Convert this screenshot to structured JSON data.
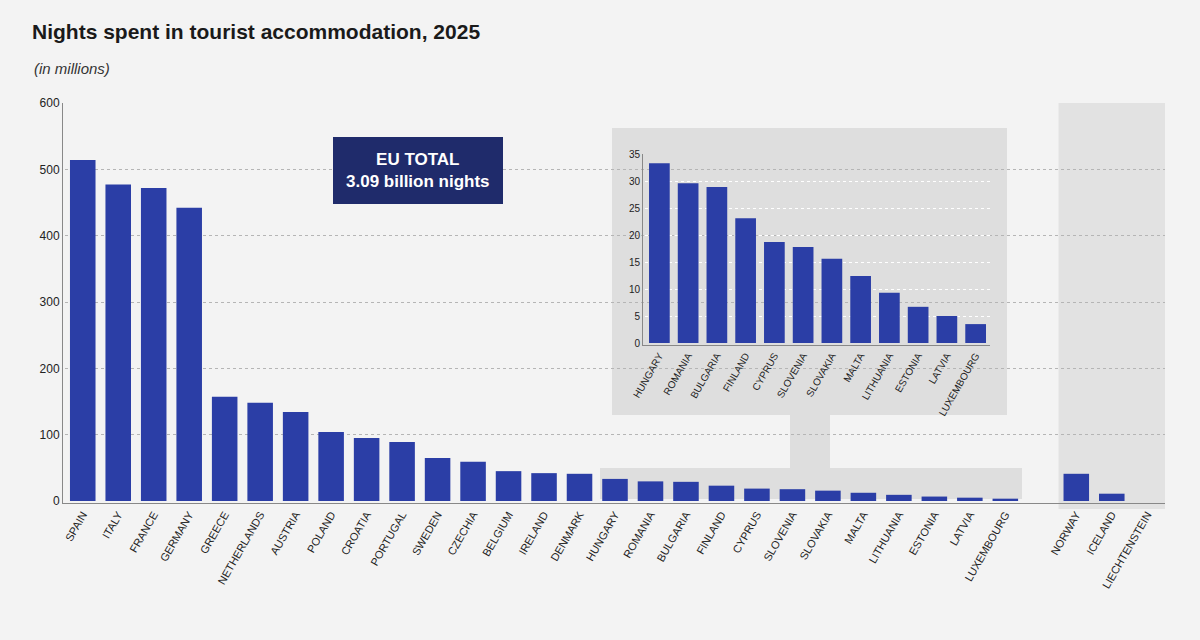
{
  "chart_data": [
    {
      "type": "bar",
      "title": "Nights spent in tourist accommodation, 2025",
      "subtitle": "(in millions)",
      "annotations": [
        "EU TOTAL",
        "3.09 billion nights"
      ],
      "categories": [
        "SPAIN",
        "ITALY",
        "FRANCE",
        "GERMANY",
        "GREECE",
        "NETHERLANDS",
        "AUSTRIA",
        "POLAND",
        "CROATIA",
        "PORTUGAL",
        "SWEDEN",
        "CZECHIA",
        "BELGIUM",
        "IRELAND",
        "DENMARK",
        "HUNGARY",
        "ROMANIA",
        "BULGARIA",
        "FINLAND",
        "CYPRUS",
        "SLOVENIA",
        "SLOVAKIA",
        "MALTA",
        "LITHUANIA",
        "ESTONIA",
        "LATVIA",
        "LUXEMBOURG",
        null,
        "NORWAY",
        "ICELAND",
        "LIECHTENSTEIN"
      ],
      "values": [
        514,
        477,
        472,
        442,
        157,
        148,
        134,
        104,
        95,
        89,
        65,
        59,
        45,
        42,
        41,
        33.3,
        29.6,
        28.9,
        23.1,
        18.7,
        17.8,
        15.6,
        12.4,
        9.3,
        6.7,
        5.0,
        3.5,
        null,
        41,
        11,
        null
      ],
      "color": "#2b3ea6",
      "ylim": [
        0,
        600
      ],
      "yticks": [
        0,
        100,
        200,
        300,
        400,
        500,
        600
      ],
      "grid": true
    },
    {
      "type": "bar",
      "categories": [
        "HUNGARY",
        "ROMANIA",
        "BULGARIA",
        "FINLAND",
        "CYPRUS",
        "SLOVENIA",
        "SLOVAKIA",
        "MALTA",
        "LITHUANIA",
        "ESTONIA",
        "LATVIA",
        "LUXEMBOURG"
      ],
      "values": [
        33.3,
        29.6,
        28.9,
        23.1,
        18.7,
        17.8,
        15.6,
        12.4,
        9.3,
        6.7,
        5.0,
        3.5
      ],
      "color": "#2b3ea6",
      "ylim": [
        0,
        35
      ],
      "yticks": [
        0,
        5,
        10,
        15,
        20,
        25,
        30,
        35
      ],
      "grid": true
    }
  ]
}
